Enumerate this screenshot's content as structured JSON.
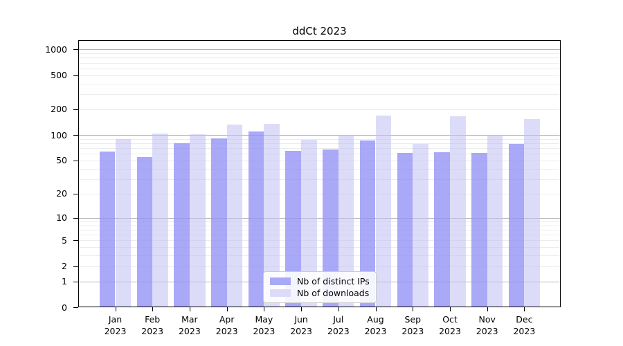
{
  "title": "ddCt 2023",
  "chart_data": {
    "type": "bar",
    "title": "ddCt 2023",
    "yscale": "log1p",
    "ylim": [
      0,
      1280
    ],
    "yticks": [
      1000,
      500,
      200,
      100,
      50,
      20,
      10,
      5,
      2,
      1,
      0
    ],
    "grid": "horizontal; major lines at powers of 10, faint minor lines at 2-9 per decade",
    "categories": [
      "Jan",
      "Feb",
      "Mar",
      "Apr",
      "May",
      "Jun",
      "Jul",
      "Aug",
      "Sep",
      "Oct",
      "Nov",
      "Dec"
    ],
    "year": "2023",
    "series": [
      {
        "name": "Nb of distinct IPs",
        "color": "#a9a9f5",
        "bar_fill": "rgba(148,148,245,0.8)",
        "values": [
          64,
          55,
          80,
          92,
          110,
          65,
          67,
          87,
          61,
          63,
          62,
          78
        ]
      },
      {
        "name": "Nb of downloads",
        "color": "#dcdcf9",
        "bar_fill": "rgba(191,191,244,0.55)",
        "values": [
          90,
          105,
          102,
          133,
          135,
          88,
          100,
          170,
          78,
          165,
          100,
          155
        ]
      }
    ],
    "legend_position": "inside lower center"
  },
  "legend": {
    "items": [
      {
        "label": "Nb of distinct IPs",
        "color": "#a9a9f5"
      },
      {
        "label": "Nb of downloads",
        "color": "#dcdcf9"
      }
    ]
  }
}
